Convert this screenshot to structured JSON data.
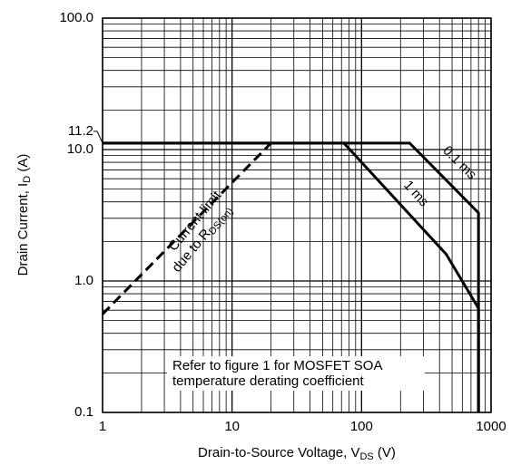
{
  "chart_data": {
    "type": "line",
    "x_label": {
      "text": "Drain-to-Source Voltage, V",
      "sub": "DS",
      "tail": " (V)"
    },
    "y_label": {
      "text": "Drain Current, I",
      "sub": "D",
      "tail": " (A)"
    },
    "log_x": true,
    "log_y": true,
    "grid": true,
    "minor_grid": true,
    "xlim": [
      1,
      1000
    ],
    "ylim": [
      0.1,
      100
    ],
    "xticks": [
      1,
      10,
      100,
      1000
    ],
    "yticks": [
      0.1,
      {
        "value": 1,
        "label": "1.0"
      },
      {
        "value": 10,
        "label": "10.0"
      },
      {
        "value": 100,
        "label": "100.0"
      }
    ],
    "y_marker": 11.2,
    "series": [
      {
        "name": "0.1 ms",
        "color": "#000000",
        "dash": false,
        "x": [
          1,
          235,
          800,
          800
        ],
        "values": [
          11.2,
          11.2,
          3.3,
          0.1
        ]
      },
      {
        "name": "1 ms",
        "color": "#000000",
        "dash": false,
        "x": [
          1,
          73,
          450,
          800,
          800
        ],
        "values": [
          11.2,
          11.2,
          1.6,
          0.62,
          0.1
        ]
      },
      {
        "label": [
          "Current limit",
          "due to R",
          "DS(on)"
        ],
        "color": "#000000",
        "dash": true,
        "x": [
          1,
          20
        ],
        "values": [
          0.56,
          11.2
        ]
      }
    ],
    "note": [
      "Refer to figure 1 for MOSFET SOA",
      "temperature derating coefficient"
    ]
  }
}
